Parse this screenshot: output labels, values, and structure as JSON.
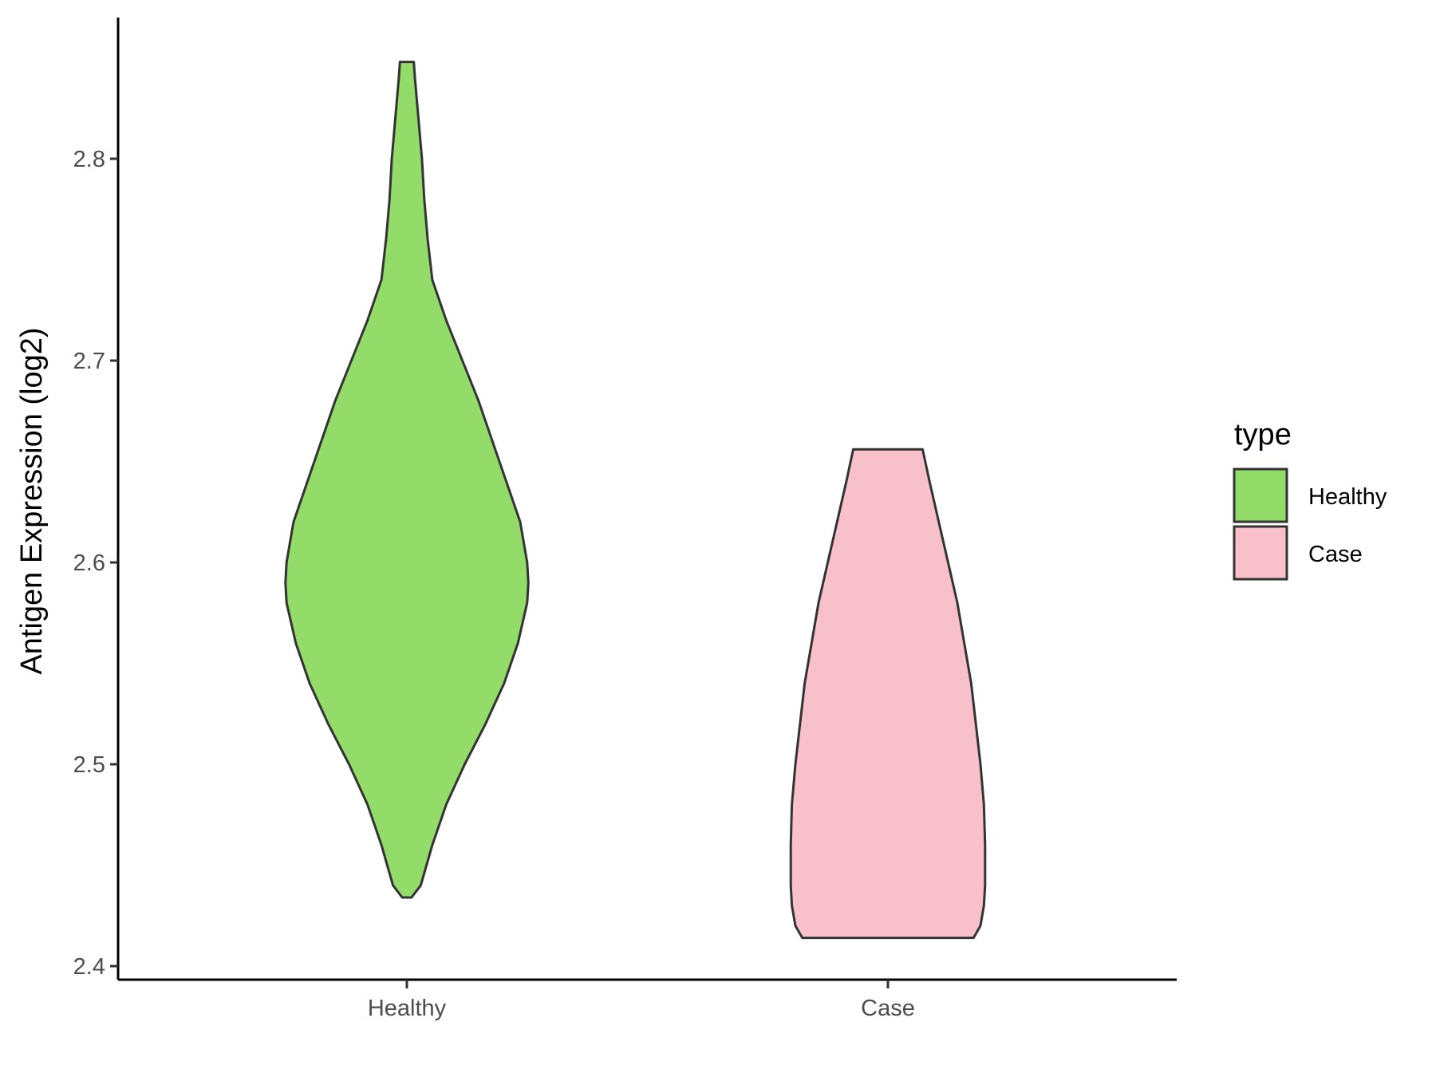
{
  "chart_data": {
    "type": "violin",
    "title": "",
    "xlabel": "",
    "ylabel": "Antigen Expression (log2)",
    "ylim": [
      2.395,
      2.87
    ],
    "yticks": [
      2.4,
      2.5,
      2.6,
      2.7,
      2.8
    ],
    "ytick_labels": [
      "2.4",
      "2.5",
      "2.6",
      "2.7",
      "2.8"
    ],
    "categories": [
      "Healthy",
      "Case"
    ],
    "grid": false,
    "legend": {
      "title": "type",
      "placement": "right",
      "entries": [
        {
          "label": "Healthy",
          "color": "#93dc6a"
        },
        {
          "label": "Case",
          "color": "#f8c0cb"
        }
      ]
    },
    "series": [
      {
        "name": "Healthy",
        "color": "#93dc6a",
        "min": 2.434,
        "max": 2.848,
        "density_profile": [
          [
            2.434,
            0.02
          ],
          [
            2.44,
            0.06
          ],
          [
            2.46,
            0.11
          ],
          [
            2.48,
            0.17
          ],
          [
            2.5,
            0.25
          ],
          [
            2.52,
            0.34
          ],
          [
            2.54,
            0.42
          ],
          [
            2.56,
            0.48
          ],
          [
            2.58,
            0.52
          ],
          [
            2.59,
            0.525
          ],
          [
            2.6,
            0.52
          ],
          [
            2.62,
            0.49
          ],
          [
            2.64,
            0.43
          ],
          [
            2.66,
            0.37
          ],
          [
            2.68,
            0.31
          ],
          [
            2.7,
            0.24
          ],
          [
            2.72,
            0.17
          ],
          [
            2.74,
            0.11
          ],
          [
            2.76,
            0.09
          ],
          [
            2.78,
            0.075
          ],
          [
            2.8,
            0.065
          ],
          [
            2.82,
            0.05
          ],
          [
            2.84,
            0.035
          ],
          [
            2.848,
            0.03
          ]
        ]
      },
      {
        "name": "Case",
        "color": "#f8c0cb",
        "min": 2.414,
        "max": 2.656,
        "density_profile": [
          [
            2.414,
            0.37
          ],
          [
            2.42,
            0.4
          ],
          [
            2.43,
            0.415
          ],
          [
            2.44,
            0.42
          ],
          [
            2.46,
            0.42
          ],
          [
            2.48,
            0.415
          ],
          [
            2.5,
            0.4
          ],
          [
            2.52,
            0.38
          ],
          [
            2.54,
            0.36
          ],
          [
            2.56,
            0.33
          ],
          [
            2.58,
            0.3
          ],
          [
            2.6,
            0.26
          ],
          [
            2.62,
            0.22
          ],
          [
            2.64,
            0.18
          ],
          [
            2.656,
            0.15
          ]
        ]
      }
    ]
  }
}
